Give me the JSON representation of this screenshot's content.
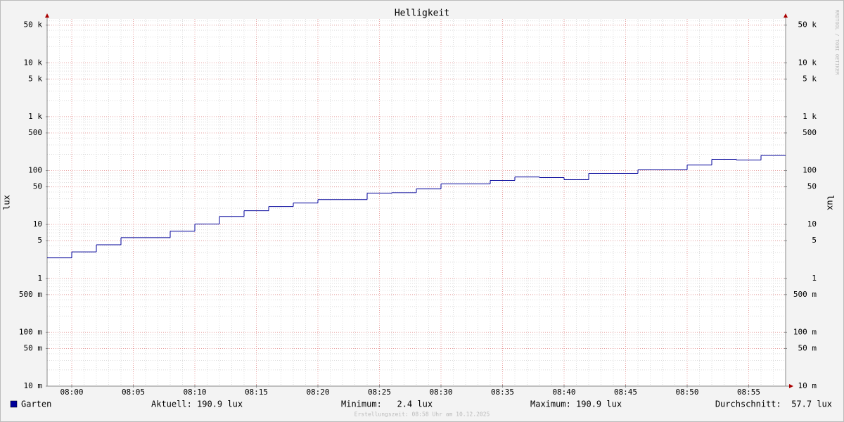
{
  "chart_data": {
    "type": "step",
    "title": "Helligkeit",
    "y_label": "lux",
    "y2_label": "lux",
    "watermark": "RRDTOOL / TOBI OETIKER",
    "log_y": true,
    "grid": true,
    "xlim": [
      "07:58",
      "08:58"
    ],
    "xticks": [
      "08:00",
      "08:05",
      "08:10",
      "08:15",
      "08:20",
      "08:25",
      "08:30",
      "08:35",
      "08:40",
      "08:45",
      "08:50",
      "08:55"
    ],
    "ylim": [
      0.01,
      65000
    ],
    "yticks": [
      {
        "value": 0.01,
        "label": "10 m"
      },
      {
        "value": 0.05,
        "label": "50 m"
      },
      {
        "value": 0.1,
        "label": "100 m"
      },
      {
        "value": 0.5,
        "label": "500 m"
      },
      1,
      5,
      10,
      50,
      100,
      500,
      {
        "value": 1000,
        "label": "1 k"
      },
      {
        "value": 5000,
        "label": "5 k"
      },
      {
        "value": 10000,
        "label": "10 k"
      },
      {
        "value": 50000,
        "label": "50 k"
      }
    ],
    "x": [
      "07:58",
      "08:00",
      "08:02",
      "08:04",
      "08:08",
      "08:10",
      "08:12",
      "08:14",
      "08:16",
      "08:18",
      "08:20",
      "08:24",
      "08:26",
      "08:28",
      "08:30",
      "08:34",
      "08:36",
      "08:38",
      "08:40",
      "08:42",
      "08:46",
      "08:50",
      "08:52",
      "08:54",
      "08:56"
    ],
    "series": [
      {
        "name": "Garten",
        "color": "#000099",
        "values": [
          2.4,
          3.1,
          4.2,
          5.7,
          7.5,
          10.2,
          14.1,
          18,
          21.5,
          25,
          29,
          38,
          39,
          45.7,
          56.5,
          65.6,
          76,
          74,
          67.6,
          88.7,
          103,
          127,
          162,
          157,
          190.9
        ]
      }
    ],
    "stats": [
      "Aktuell: 190.9 lux",
      "Minimum:   2.4 lux",
      "Maximum: 190.9 lux",
      "Durchschnitt:  57.7 lux"
    ],
    "footer": "Erstellungszeit: 08:58 Uhr am 10.12.2025"
  }
}
